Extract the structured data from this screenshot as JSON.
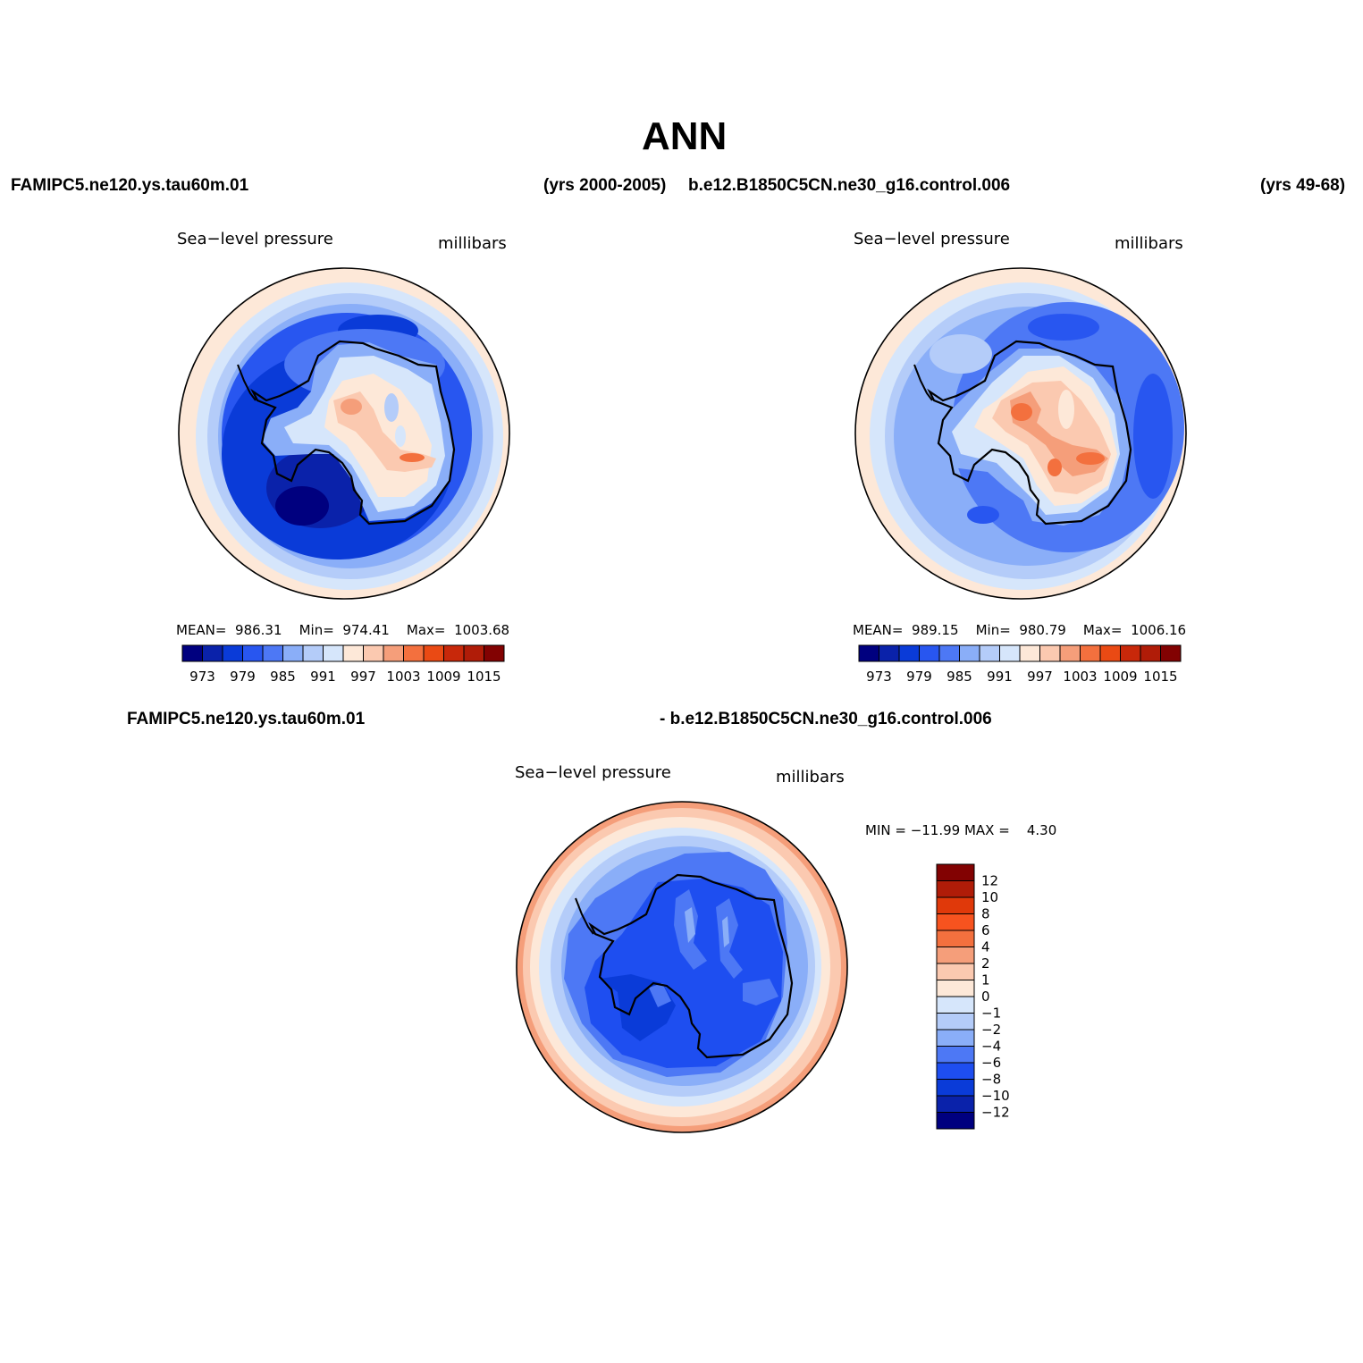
{
  "title": "ANN",
  "header": {
    "case1": "FAMIPC5.ne120.ys.tau60m.01",
    "case1_years": "(yrs 2000-2005)",
    "case2": "b.e12.B1850C5CN.ne30_g16.control.006",
    "case2_years": "(yrs 49-68)"
  },
  "diff_header": {
    "left": "FAMIPC5.ne120.ys.tau60m.01",
    "right": "- b.e12.B1850C5CN.ne30_g16.control.006"
  },
  "panels": [
    {
      "variable": "Sea−level pressure",
      "units": "millibars",
      "stats": {
        "mean_label": "MEAN=",
        "mean": "986.31",
        "min_label": "Min=",
        "min": "974.41",
        "max_label": "Max=",
        "max": "1003.68"
      }
    },
    {
      "variable": "Sea−level pressure",
      "units": "millibars",
      "stats": {
        "mean_label": "MEAN=",
        "mean": "989.15",
        "min_label": "Min=",
        "min": "980.79",
        "max_label": "Max=",
        "max": "1006.16"
      }
    },
    {
      "variable": "Sea−level pressure",
      "units": "millibars",
      "stats": {
        "text": "MIN = −11.99 MAX =    4.30"
      }
    }
  ],
  "colorbar_abs": {
    "colors": [
      "#00007f",
      "#0a22aa",
      "#0a3bd8",
      "#2856f0",
      "#4d78f5",
      "#8aaef8",
      "#b4ccf9",
      "#d6e6fb",
      "#fde8d8",
      "#fbc9b0",
      "#f59e7a",
      "#f3703e",
      "#ea4a14",
      "#c8280a",
      "#b01c08",
      "#820202"
    ],
    "labels": [
      "973",
      "979",
      "985",
      "991",
      "997",
      "1003",
      "1009",
      "1015"
    ]
  },
  "colorbar_diff": {
    "colors": [
      "#820202",
      "#b01c08",
      "#e0390a",
      "#f7531f",
      "#f3703e",
      "#f59e7a",
      "#fbc9b0",
      "#fde8d8",
      "#d6e6fb",
      "#b4ccf9",
      "#8aaef8",
      "#4d78f5",
      "#1e4ef0",
      "#0a3bd8",
      "#0a22aa",
      "#00007f"
    ],
    "labels": [
      "12",
      "10",
      "8",
      "6",
      "4",
      "2",
      "1",
      "0",
      "−1",
      "−2",
      "−4",
      "−6",
      "−8",
      "−10",
      "−12"
    ]
  }
}
